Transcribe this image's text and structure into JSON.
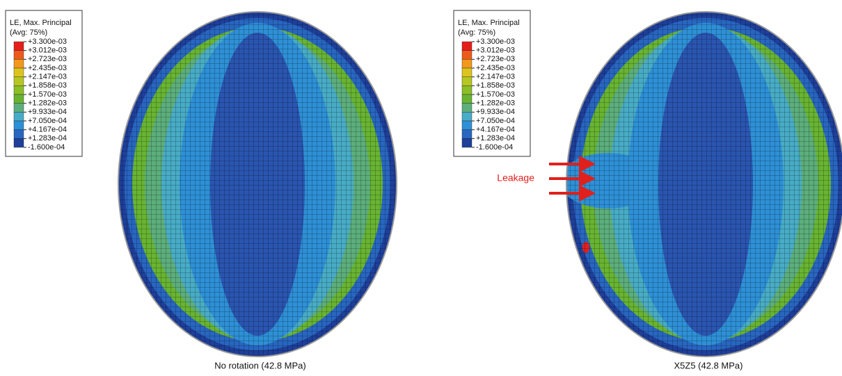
{
  "panels": [
    {
      "legend": {
        "title": [
          "LE, Max. Principal",
          "(Avg: 75%)"
        ],
        "labels": [
          "+3.300e-03",
          "+3.012e-03",
          "+2.723e-03",
          "+2.435e-03",
          "+2.147e-03",
          "+1.858e-03",
          "+1.570e-03",
          "+1.282e-03",
          "+9.933e-04",
          "+7.050e-04",
          "+4.167e-04",
          "+1.283e-04",
          "-1.600e-04"
        ],
        "colors": [
          "#e41f1b",
          "#ee5a1c",
          "#f2981c",
          "#dcc41e",
          "#b6c622",
          "#8cbe26",
          "#68b432",
          "#5cae7c",
          "#48acc6",
          "#2e90d6",
          "#2866c0",
          "#1e3f9a"
        ]
      },
      "caption": "No rotation (42.8 MPa)"
    },
    {
      "legend": {
        "title": [
          "LE, Max. Principal",
          "(Avg: 75%)"
        ],
        "labels": [
          "+3.300e-03",
          "+3.012e-03",
          "+2.723e-03",
          "+2.435e-03",
          "+2.147e-03",
          "+1.858e-03",
          "+1.570e-03",
          "+1.282e-03",
          "+9.933e-04",
          "+7.050e-04",
          "+4.167e-04",
          "+1.283e-04",
          "-1.600e-04"
        ],
        "colors": [
          "#e41f1b",
          "#ee5a1c",
          "#f2981c",
          "#dcc41e",
          "#b6c622",
          "#8cbe26",
          "#68b432",
          "#5cae7c",
          "#48acc6",
          "#2e90d6",
          "#2866c0",
          "#1e3f9a"
        ]
      },
      "annotation": "Leakage",
      "caption": "X5Z5 (42.8 MPa)"
    }
  ]
}
